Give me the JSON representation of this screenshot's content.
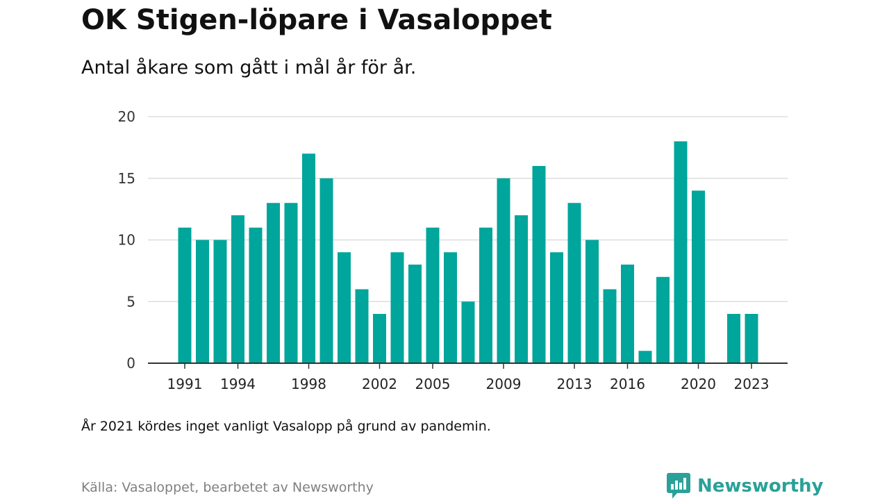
{
  "header": {
    "title": "OK Stigen-löpare i Vasaloppet",
    "subtitle": "Antal åkare som gått i mål år för år."
  },
  "footer": {
    "note": "År 2021 kördes inget vanligt Vasalopp på grund av pandemin.",
    "source": "Källa: Vasaloppet, bearbetet av Newsworthy",
    "brand": "Newsworthy"
  },
  "colors": {
    "bar": "#00a59b",
    "grid": "#dddddd",
    "axis": "#333333",
    "brand": "#2aa198"
  },
  "icons": {
    "brand_logo": "bar-chart-speech-bubble-icon"
  },
  "chart_data": {
    "type": "bar",
    "categories": [
      1991,
      1992,
      1993,
      1994,
      1995,
      1996,
      1997,
      1998,
      1999,
      2000,
      2001,
      2002,
      2003,
      2004,
      2005,
      2006,
      2007,
      2008,
      2009,
      2010,
      2011,
      2012,
      2013,
      2014,
      2015,
      2016,
      2017,
      2018,
      2019,
      2020,
      2021,
      2022,
      2023
    ],
    "values": [
      11,
      10,
      10,
      12,
      11,
      13,
      13,
      17,
      15,
      9,
      6,
      4,
      9,
      8,
      11,
      9,
      5,
      11,
      15,
      12,
      16,
      9,
      13,
      10,
      6,
      8,
      1,
      7,
      18,
      14,
      0,
      4,
      4
    ],
    "x_tick_labels": [
      "1991",
      "1994",
      "1998",
      "2002",
      "2005",
      "2009",
      "2013",
      "2016",
      "2020",
      "2023"
    ],
    "y_ticks": [
      0,
      5,
      10,
      15,
      20
    ],
    "ylim": [
      0,
      20
    ],
    "grid": true,
    "legend": "none"
  }
}
